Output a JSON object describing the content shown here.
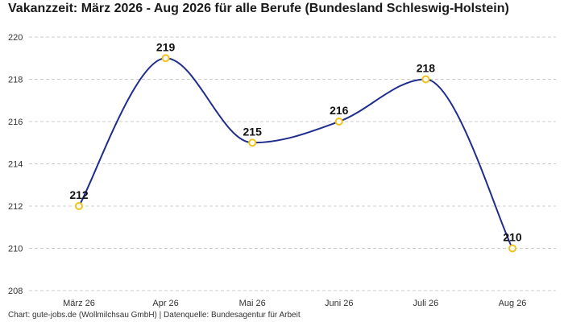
{
  "title": "Vakanzzeit: März 2026 - Aug 2026 für alle Berufe (Bundesland Schleswig-Holstein)",
  "footer": "Chart: gute-jobs.de (Wollmilchsau GmbH) | Datenquelle: Bundesagentur für Arbeit",
  "colors": {
    "line": "#1f2d8c",
    "marker": "#f2c21b",
    "grid": "#cccccc"
  },
  "chart_data": {
    "type": "line",
    "categories": [
      "März 26",
      "Apr 26",
      "Mai 26",
      "Juni 26",
      "Juli 26",
      "Aug 26"
    ],
    "values": [
      212,
      219,
      215,
      216,
      218,
      210
    ],
    "data_labels": [
      "212",
      "219",
      "215",
      "216",
      "218",
      "210"
    ],
    "ylim": [
      208,
      220
    ],
    "yticks": [
      208,
      210,
      212,
      214,
      216,
      218,
      220
    ],
    "grid": true,
    "legend": "none",
    "xlabel": "",
    "ylabel": ""
  }
}
